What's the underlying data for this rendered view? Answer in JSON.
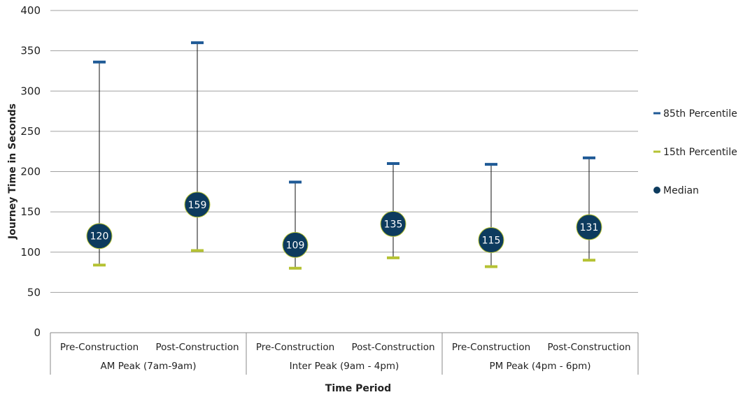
{
  "chart_data": {
    "type": "scatter",
    "xlabel": "Time Period",
    "ylabel": "Journey Time in Seconds",
    "ylim": [
      0,
      400
    ],
    "yticks": [
      0,
      50,
      100,
      150,
      200,
      250,
      300,
      350,
      400
    ],
    "grid": true,
    "legend_position": "right",
    "categories": [
      "Pre-Construction",
      "Post-Construction",
      "Pre-Construction",
      "Post-Construction",
      "Pre-Construction",
      "Post-Construction"
    ],
    "groups": [
      "AM Peak (7am-9am)",
      "Inter Peak (9am - 4pm)",
      "PM Peak (4pm - 6pm)"
    ],
    "series": [
      {
        "name": "85th Percentile",
        "values": [
          336,
          360,
          187,
          210,
          209,
          217
        ],
        "color": "#1f5a96"
      },
      {
        "name": "15th Percentile",
        "values": [
          84,
          102,
          80,
          93,
          82,
          90
        ],
        "color": "#b5c233"
      },
      {
        "name": "Median",
        "values": [
          120,
          159,
          109,
          135,
          115,
          131
        ],
        "color": "#0d3b5e"
      }
    ]
  }
}
